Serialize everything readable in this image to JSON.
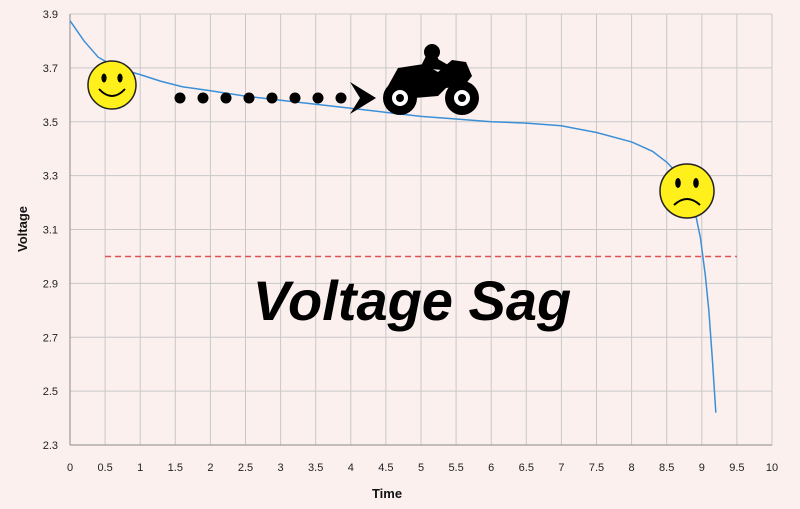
{
  "chart_data": {
    "type": "line",
    "xlabel": "Time",
    "ylabel": "Voltage",
    "xlim": [
      0,
      10
    ],
    "ylim": [
      2.3,
      3.9
    ],
    "x_ticks": [
      "0",
      "0.5",
      "1",
      "1.5",
      "2",
      "2.5",
      "3",
      "3.5",
      "4",
      "4.5",
      "5",
      "5.5",
      "6",
      "6.5",
      "7",
      "7.5",
      "8",
      "8.5",
      "9",
      "9.5",
      "10"
    ],
    "y_ticks": [
      "2.3",
      "2.5",
      "2.7",
      "2.9",
      "3.1",
      "3.3",
      "3.5",
      "3.7",
      "3.9"
    ],
    "grid": true,
    "series": [
      {
        "color": "#3c8fd6",
        "x": [
          0,
          0.2,
          0.4,
          0.6,
          0.8,
          1.0,
          1.3,
          1.6,
          2.0,
          2.5,
          3.0,
          3.5,
          4.0,
          4.5,
          5.0,
          5.5,
          6.0,
          6.5,
          7.0,
          7.5,
          8.0,
          8.3,
          8.5,
          8.65,
          8.8,
          8.9,
          8.98,
          9.05,
          9.1,
          9.15,
          9.2
        ],
        "y": [
          3.875,
          3.8,
          3.74,
          3.71,
          3.69,
          3.675,
          3.65,
          3.63,
          3.615,
          3.595,
          3.58,
          3.565,
          3.55,
          3.535,
          3.52,
          3.51,
          3.5,
          3.495,
          3.485,
          3.46,
          3.425,
          3.39,
          3.35,
          3.31,
          3.25,
          3.17,
          3.07,
          2.93,
          2.8,
          2.62,
          2.42
        ]
      }
    ],
    "reference_line": {
      "y": 3.0,
      "x_range": [
        0.5,
        9.5
      ],
      "color": "#e05050",
      "style": "dashed"
    },
    "annotation_text": "Voltage Sag",
    "icons": [
      "smiley-face-icon",
      "dotted-arrow-icon",
      "motorcycle-icon",
      "sad-face-icon"
    ]
  }
}
